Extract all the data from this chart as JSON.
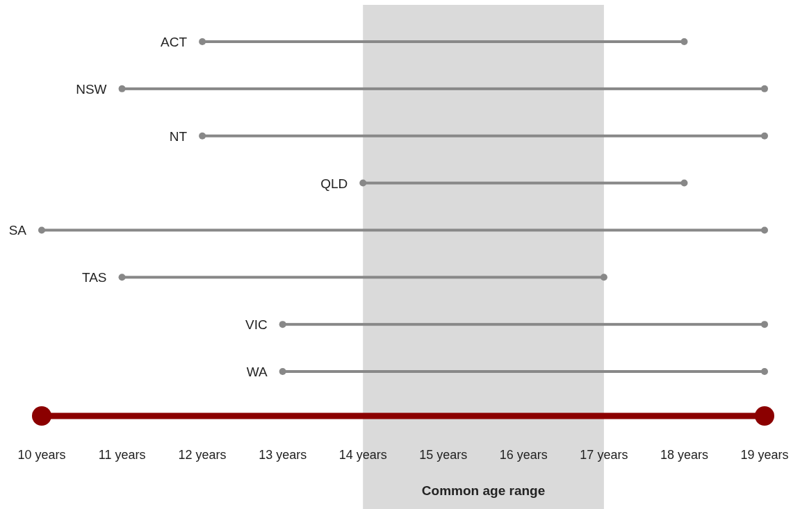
{
  "chart_data": {
    "type": "bar",
    "orientation": "horizontal",
    "categories": [
      "ACT",
      "NSW",
      "NT",
      "QLD",
      "SA",
      "TAS",
      "VIC",
      "WA"
    ],
    "base": [
      12,
      11,
      12,
      14,
      10,
      11,
      13,
      13
    ],
    "values": [
      6,
      8,
      7,
      4,
      9,
      6,
      6,
      6
    ],
    "color": "#888888",
    "xlim": [
      10,
      19
    ],
    "xticks": [
      {
        "value": 10,
        "label": "10 years"
      },
      {
        "value": 11,
        "label": "11 years"
      },
      {
        "value": 12,
        "label": "12 years"
      },
      {
        "value": 13,
        "label": "13 years"
      },
      {
        "value": 14,
        "label": "14 years"
      },
      {
        "value": 15,
        "label": "15 years"
      },
      {
        "value": 16,
        "label": "16 years"
      },
      {
        "value": 17,
        "label": "17 years"
      },
      {
        "value": 18,
        "label": "18 years"
      },
      {
        "value": 19,
        "label": "19 years"
      }
    ],
    "bands": [
      {
        "axis": "x",
        "from": 14,
        "to": 17,
        "label": "Common age range",
        "color": "#dadada"
      }
    ],
    "grid": false
  }
}
